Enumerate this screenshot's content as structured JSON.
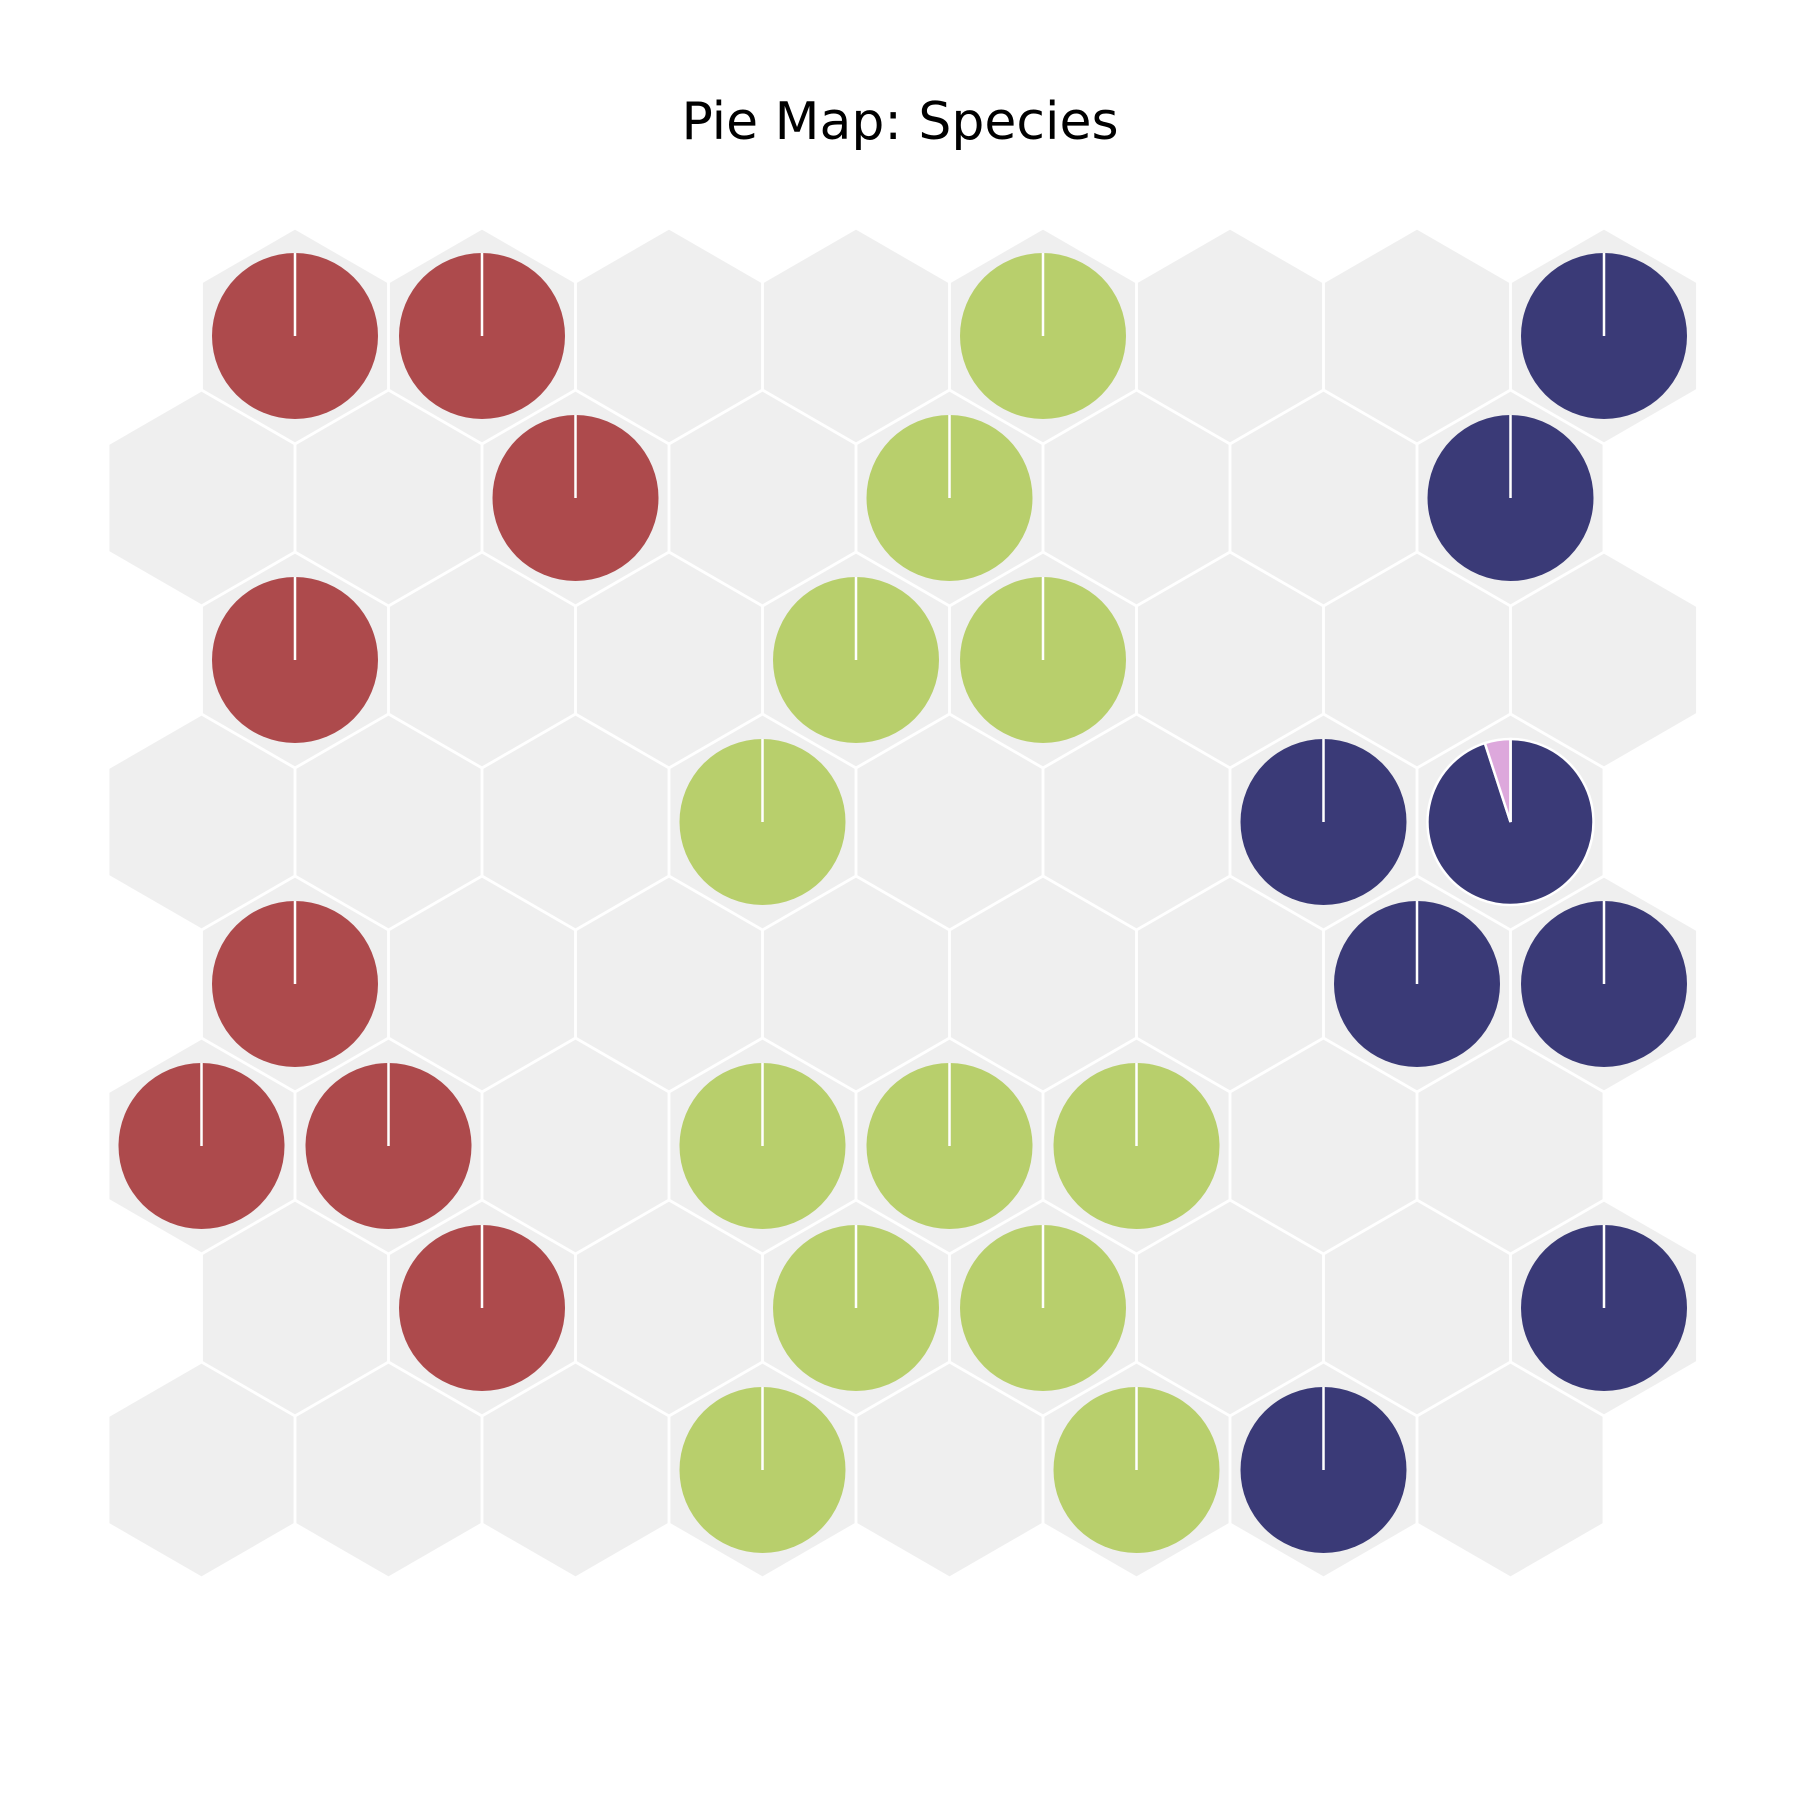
{
  "chart_data": {
    "type": "pie",
    "title": "Pie Map: Species",
    "grid": {
      "columns": 8,
      "rows": 8,
      "cell_shape": "hexagon"
    },
    "classes": [
      {
        "key": "a",
        "color": "#ad4a4c"
      },
      {
        "key": "b",
        "color": "#b8cf6c"
      },
      {
        "key": "c",
        "color": "#3a3a77"
      },
      {
        "key": "d",
        "color": "#dda8dc"
      }
    ],
    "nodes": [
      {
        "row": 0,
        "col": 0,
        "values": [
          1,
          0,
          0,
          0
        ]
      },
      {
        "row": 0,
        "col": 1,
        "values": [
          1,
          0,
          0,
          0
        ]
      },
      {
        "row": 0,
        "col": 4,
        "values": [
          0,
          1,
          0,
          0
        ]
      },
      {
        "row": 0,
        "col": 7,
        "values": [
          0,
          0,
          1,
          0
        ]
      },
      {
        "row": 1,
        "col": 2,
        "values": [
          1,
          0,
          0,
          0
        ]
      },
      {
        "row": 1,
        "col": 4,
        "values": [
          0,
          1,
          0,
          0
        ]
      },
      {
        "row": 1,
        "col": 7,
        "values": [
          0,
          0,
          1,
          0
        ]
      },
      {
        "row": 2,
        "col": 0,
        "values": [
          1,
          0,
          0,
          0
        ]
      },
      {
        "row": 2,
        "col": 3,
        "values": [
          0,
          1,
          0,
          0
        ]
      },
      {
        "row": 2,
        "col": 4,
        "values": [
          0,
          1,
          0,
          0
        ]
      },
      {
        "row": 3,
        "col": 3,
        "values": [
          0,
          1,
          0,
          0
        ]
      },
      {
        "row": 3,
        "col": 6,
        "values": [
          0,
          0,
          1,
          0
        ]
      },
      {
        "row": 3,
        "col": 7,
        "values": [
          0,
          0,
          0.95,
          0.05
        ]
      },
      {
        "row": 4,
        "col": 0,
        "values": [
          1,
          0,
          0,
          0
        ]
      },
      {
        "row": 4,
        "col": 6,
        "values": [
          0,
          0,
          1,
          0
        ]
      },
      {
        "row": 4,
        "col": 7,
        "values": [
          0,
          0,
          1,
          0
        ]
      },
      {
        "row": 5,
        "col": 0,
        "values": [
          1,
          0,
          0,
          0
        ]
      },
      {
        "row": 5,
        "col": 1,
        "values": [
          1,
          0,
          0,
          0
        ]
      },
      {
        "row": 5,
        "col": 3,
        "values": [
          0,
          1,
          0,
          0
        ]
      },
      {
        "row": 5,
        "col": 4,
        "values": [
          0,
          1,
          0,
          0
        ]
      },
      {
        "row": 5,
        "col": 5,
        "values": [
          0,
          1,
          0,
          0
        ]
      },
      {
        "row": 6,
        "col": 1,
        "values": [
          1,
          0,
          0,
          0
        ]
      },
      {
        "row": 6,
        "col": 3,
        "values": [
          0,
          1,
          0,
          0
        ]
      },
      {
        "row": 6,
        "col": 4,
        "values": [
          0,
          1,
          0,
          0
        ]
      },
      {
        "row": 6,
        "col": 7,
        "values": [
          0,
          0,
          1,
          0
        ]
      },
      {
        "row": 7,
        "col": 3,
        "values": [
          0,
          1,
          0,
          0
        ]
      },
      {
        "row": 7,
        "col": 5,
        "values": [
          0,
          1,
          0,
          0
        ]
      },
      {
        "row": 7,
        "col": 6,
        "values": [
          0,
          0,
          1,
          0
        ]
      }
    ],
    "background_cell_color": "#efefef",
    "separator_color": "#ffffff",
    "legend": "none",
    "axes": "off"
  }
}
